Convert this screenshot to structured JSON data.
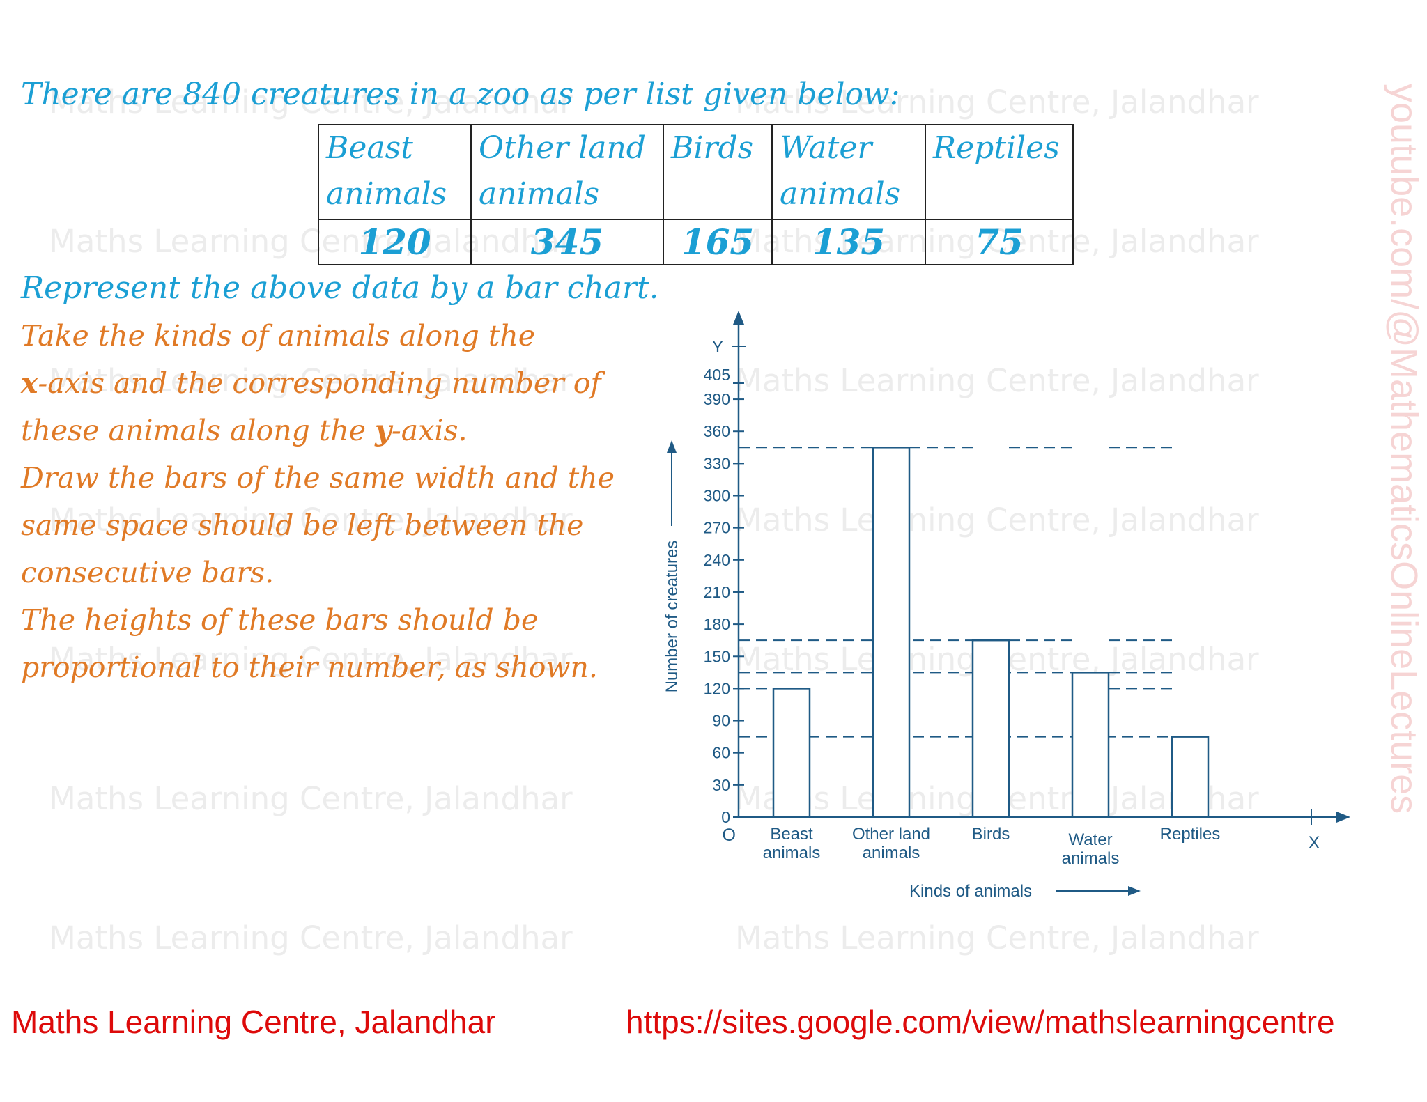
{
  "watermark_text": "Maths Learning Centre, Jalandhar",
  "side_watermark": "youtube.com/@MathematicsOnlineLectures",
  "problem": {
    "title": "There are 840 creatures in a zoo as per list given below:",
    "table": {
      "headers": [
        [
          "Beast",
          "animals"
        ],
        [
          "Other land",
          "animals"
        ],
        [
          "Birds",
          ""
        ],
        [
          "Water",
          "animals"
        ],
        [
          "Reptiles",
          ""
        ]
      ],
      "values": [
        "120",
        "345",
        "165",
        "135",
        "75"
      ]
    },
    "instruction1": "Represent the above data by a bar chart.",
    "instruction2_a": "Take the kinds of animals along the",
    "instruction2_x": "x",
    "instruction2_b": "-axis and the corresponding number of these animals along the",
    "instruction2_y": "y",
    "instruction2_c": "-axis.",
    "instruction3": "Draw the bars of the same width and the same space should be left between the consecutive bars.",
    "instruction4": "The heights of these bars should be proportional to their number, as shown."
  },
  "chart_data": {
    "type": "bar",
    "categories": [
      [
        "Beast",
        "animals"
      ],
      [
        "Other land",
        "animals"
      ],
      [
        "Birds"
      ],
      [
        "Water",
        "animals"
      ],
      [
        "Reptiles"
      ]
    ],
    "values": [
      120,
      345,
      165,
      135,
      75
    ],
    "yticks": [
      0,
      30,
      60,
      90,
      120,
      150,
      180,
      210,
      240,
      270,
      300,
      330,
      360,
      390,
      405
    ],
    "ylim": [
      0,
      405
    ],
    "xlabel": "Kinds of animals",
    "ylabel": "Number of creatures",
    "origin_label": "O",
    "x_axis_label": "X",
    "y_axis_label": "Y",
    "grid": false,
    "guide_lines": "dashed"
  },
  "colors": {
    "chart_ink": "#1f5a85",
    "title_blue": "#1b9fd4",
    "instruction_orange": "#e07a26",
    "footer_red": "#dd0a0a"
  },
  "footer": {
    "left": "Maths Learning Centre, Jalandhar",
    "right": "https://sites.google.com/view/mathslearningcentre"
  }
}
